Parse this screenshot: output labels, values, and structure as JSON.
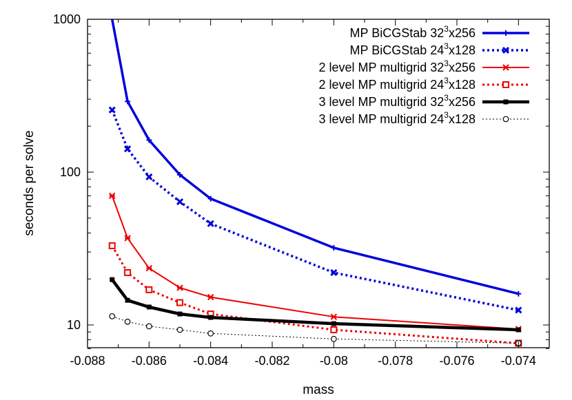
{
  "chart_data": {
    "type": "line",
    "xlabel": "mass",
    "ylabel": "seconds per solve",
    "xlim": [
      -0.088,
      -0.073
    ],
    "ylim": [
      7,
      1000
    ],
    "y_scale": "log",
    "grid": false,
    "legend_position": "top-right",
    "x_ticks": [
      -0.088,
      -0.086,
      -0.084,
      -0.082,
      -0.08,
      -0.078,
      -0.076,
      -0.074
    ],
    "x_tick_labels": [
      "-0.088",
      "-0.086",
      "-0.084",
      "-0.082",
      "-0.08",
      "-0.078",
      "-0.076",
      "-0.074"
    ],
    "y_ticks": [
      10,
      100,
      1000
    ],
    "y_tick_labels": [
      "10",
      "100",
      "1000"
    ],
    "series": [
      {
        "name": "MP BiCGStab 32³x256",
        "legend": {
          "prefix": "MP BiCGStab 32",
          "sup": "3",
          "suffix": "x256"
        },
        "color": "#0000dd",
        "dash": "solid",
        "width": 3.5,
        "marker": "plus",
        "x": [
          -0.0872,
          -0.0867,
          -0.086,
          -0.085,
          -0.084,
          -0.08,
          -0.074
        ],
        "y": [
          1000,
          290,
          162,
          96,
          67,
          32,
          16
        ]
      },
      {
        "name": "MP BiCGStab 24³x128",
        "legend": {
          "prefix": "MP BiCGStab 24",
          "sup": "3",
          "suffix": "x128"
        },
        "color": "#0000dd",
        "dash": "dotted",
        "width": 3.5,
        "marker": "x",
        "x": [
          -0.0872,
          -0.0867,
          -0.086,
          -0.085,
          -0.084,
          -0.08,
          -0.074
        ],
        "y": [
          255,
          142,
          93,
          64,
          46,
          22,
          12.5
        ]
      },
      {
        "name": "2 level MP multigrid 32³x256",
        "legend": {
          "prefix": "2 level MP multigrid 32",
          "sup": "3",
          "suffix": "x256"
        },
        "color": "#ee0000",
        "dash": "solid",
        "width": 2,
        "marker": "star",
        "x": [
          -0.0872,
          -0.0867,
          -0.086,
          -0.085,
          -0.084,
          -0.08,
          -0.074
        ],
        "y": [
          70,
          37,
          23.5,
          17.5,
          15.2,
          11.3,
          9.4
        ]
      },
      {
        "name": "2 level MP multigrid 24³x128",
        "legend": {
          "prefix": "2 level MP multigrid 24",
          "sup": "3",
          "suffix": "x128"
        },
        "color": "#ee0000",
        "dash": "dotted",
        "width": 3,
        "marker": "box",
        "x": [
          -0.0872,
          -0.0867,
          -0.086,
          -0.085,
          -0.084,
          -0.08,
          -0.074
        ],
        "y": [
          33,
          22,
          17,
          14,
          11.8,
          9.3,
          7.6
        ]
      },
      {
        "name": "3 level MP multigrid 32³x256",
        "legend": {
          "prefix": "3 level MP multigrid 32",
          "sup": "3",
          "suffix": "x256"
        },
        "color": "#000000",
        "dash": "solid",
        "width": 4.5,
        "marker": "filledsquare",
        "x": [
          -0.0872,
          -0.0867,
          -0.086,
          -0.085,
          -0.084,
          -0.08,
          -0.074
        ],
        "y": [
          19.8,
          14.5,
          13.1,
          11.8,
          11.2,
          10.2,
          9.3
        ]
      },
      {
        "name": "3 level MP multigrid 24³x128",
        "legend": {
          "prefix": "3 level MP multigrid 24",
          "sup": "3",
          "suffix": "x128"
        },
        "color": "#000000",
        "dash": "finedot",
        "width": 1,
        "marker": "circle",
        "x": [
          -0.0872,
          -0.0867,
          -0.086,
          -0.085,
          -0.084,
          -0.08,
          -0.074
        ],
        "y": [
          11.4,
          10.5,
          9.8,
          9.3,
          8.8,
          8.1,
          7.6
        ]
      }
    ]
  }
}
